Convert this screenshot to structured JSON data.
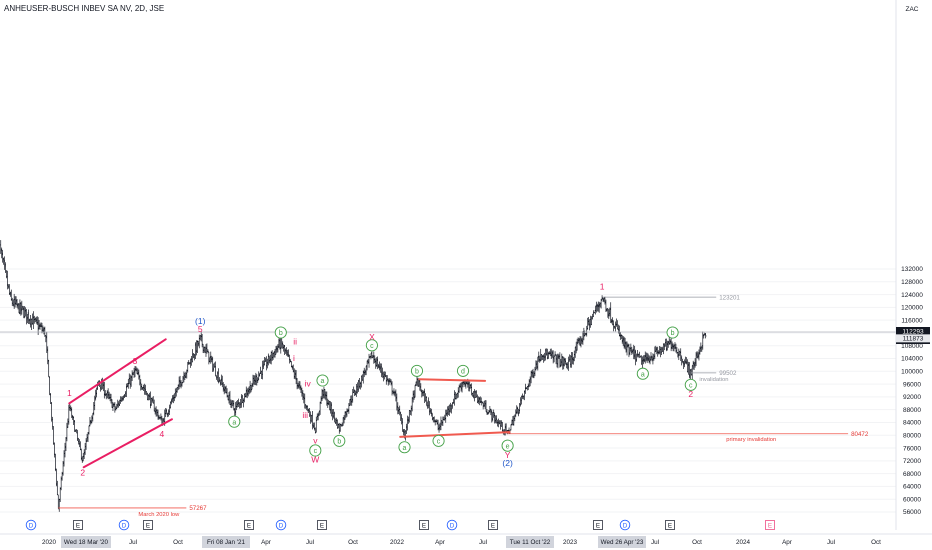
{
  "header": {
    "symbol_title": "ANHEUSER-BUSCH INBEV SA NV, 2D, JSE"
  },
  "colors": {
    "up": "#131722",
    "down": "#131722",
    "pink": "#e91e63",
    "green": "#43a047",
    "blue": "#1e55c9",
    "red_line": "#f05a4f",
    "gray": "#9598a1"
  },
  "price_scale": {
    "currency": "ZAC",
    "ticks": [
      "132000",
      "128000",
      "124000",
      "120000",
      "116000",
      "112000",
      "108000",
      "104000",
      "100000",
      "96000",
      "92000",
      "88000",
      "84000",
      "80000",
      "76000",
      "72000",
      "68000",
      "64000",
      "60000",
      "56000"
    ],
    "last_price": "112293",
    "countdown": "1d 3h",
    "prev_level": "111873"
  },
  "time_axis": {
    "labels": [
      "2020",
      "Jul",
      "Oct",
      "Apr",
      "Jul",
      "Oct",
      "2022",
      "Apr",
      "Jul",
      "2023",
      "Jul",
      "Oct",
      "2024",
      "Apr",
      "Jul",
      "Oct"
    ],
    "highlighted": [
      "Wed 18 Mar '20",
      "Fri 08 Jan '21",
      "Tue 11 Oct '22",
      "Wed 26 Apr '23"
    ]
  },
  "events": {
    "dividend_markers": [
      "D",
      "D",
      "D",
      "D",
      "D"
    ],
    "earnings_markers": [
      "E",
      "E",
      "E",
      "E",
      "E",
      "E",
      "E",
      "E",
      "E"
    ],
    "future_earnings": "E"
  },
  "chart_data": {
    "type": "ohlc",
    "title": "ANHEUSER-BUSCH INBEV SA NV, 2D, JSE",
    "unit": "ZAC",
    "ylim": [
      54000,
      136000
    ],
    "xrange": [
      "2019-11-01",
      "2024-12-31"
    ],
    "waypoints": [
      {
        "date": "2019-11-15",
        "price": 140000
      },
      {
        "date": "2019-12-10",
        "price": 122000
      },
      {
        "date": "2020-01-10",
        "price": 118000
      },
      {
        "date": "2020-02-20",
        "price": 112000
      },
      {
        "date": "2020-03-18",
        "price": 57267
      },
      {
        "date": "2020-04-10",
        "price": 89000
      },
      {
        "date": "2020-05-08",
        "price": 72000
      },
      {
        "date": "2020-06-10",
        "price": 97000
      },
      {
        "date": "2020-07-15",
        "price": 88000
      },
      {
        "date": "2020-08-25",
        "price": 100000
      },
      {
        "date": "2020-10-20",
        "price": 84000
      },
      {
        "date": "2021-01-08",
        "price": 110000
      },
      {
        "date": "2021-03-20",
        "price": 88000
      },
      {
        "date": "2021-06-25",
        "price": 109000
      },
      {
        "date": "2021-07-10",
        "price": 104000
      },
      {
        "date": "2021-08-15",
        "price": 90000
      },
      {
        "date": "2021-09-05",
        "price": 82000
      },
      {
        "date": "2021-09-20",
        "price": 94000
      },
      {
        "date": "2021-10-25",
        "price": 82000
      },
      {
        "date": "2021-11-20",
        "price": 92000
      },
      {
        "date": "2021-12-05",
        "price": 96000
      },
      {
        "date": "2022-01-01",
        "price": 105000
      },
      {
        "date": "2022-02-15",
        "price": 94000
      },
      {
        "date": "2022-03-10",
        "price": 80000
      },
      {
        "date": "2022-04-05",
        "price": 97000
      },
      {
        "date": "2022-05-20",
        "price": 82000
      },
      {
        "date": "2022-07-10",
        "price": 97000
      },
      {
        "date": "2022-10-11",
        "price": 80500
      },
      {
        "date": "2022-12-20",
        "price": 106000
      },
      {
        "date": "2023-02-15",
        "price": 102000
      },
      {
        "date": "2023-04-26",
        "price": 123201
      },
      {
        "date": "2023-06-15",
        "price": 107000
      },
      {
        "date": "2023-07-20",
        "price": 103000
      },
      {
        "date": "2023-09-20",
        "price": 109000
      },
      {
        "date": "2023-10-28",
        "price": 99502
      },
      {
        "date": "2023-11-28",
        "price": 112293
      }
    ],
    "levels": [
      {
        "label": "123201",
        "price": 123201,
        "from": "2023-04-26",
        "to": "2023-12-20"
      },
      {
        "label": "99502",
        "price": 99502,
        "from": "2023-10-28",
        "to": "2023-12-20"
      },
      {
        "label": "80472",
        "price": 80472,
        "from": "2022-10-11",
        "to": "2024-09-20"
      },
      {
        "label": "57267",
        "price": 57267,
        "from": "2020-03-18",
        "to": "2020-12-10"
      },
      {
        "label": "112293",
        "price": 112293,
        "from": "2019-11-01",
        "to": "2024-12-31"
      }
    ],
    "level_notes": [
      {
        "text": "March 2020 low",
        "price": 57267,
        "date": "2020-09-01"
      },
      {
        "text": "primary invalidation",
        "price": 80472,
        "date": "2024-01-10"
      },
      {
        "text": "invalidation",
        "price": 99502,
        "date": "2023-11-15"
      }
    ],
    "trendlines": [
      {
        "from": {
          "date": "2020-04-10",
          "price": 90000
        },
        "to": {
          "date": "2020-10-28",
          "price": 110000
        },
        "color": "pink"
      },
      {
        "from": {
          "date": "2020-05-10",
          "price": 70000
        },
        "to": {
          "date": "2020-11-10",
          "price": 85000
        },
        "color": "pink"
      },
      {
        "from": {
          "date": "2022-03-01",
          "price": 79500
        },
        "to": {
          "date": "2022-10-15",
          "price": 81000
        },
        "color": "red_line"
      },
      {
        "from": {
          "date": "2022-04-10",
          "price": 97500
        },
        "to": {
          "date": "2022-08-25",
          "price": 97000
        },
        "color": "red_line"
      }
    ],
    "wave_labels": [
      {
        "text": "1",
        "date": "2020-04-10",
        "price": 90000,
        "style": "plain",
        "color": "pink",
        "pos": "above"
      },
      {
        "text": "2",
        "date": "2020-05-08",
        "price": 72000,
        "style": "plain",
        "color": "pink",
        "pos": "below"
      },
      {
        "text": "3",
        "date": "2020-08-25",
        "price": 100000,
        "style": "plain",
        "color": "pink",
        "pos": "above"
      },
      {
        "text": "4",
        "date": "2020-10-20",
        "price": 84000,
        "style": "plain",
        "color": "pink",
        "pos": "below"
      },
      {
        "text": "5",
        "date": "2021-01-08",
        "price": 110000,
        "style": "plain",
        "color": "pink",
        "pos": "above"
      },
      {
        "text": "(1)",
        "date": "2021-01-08",
        "price": 112500,
        "style": "plain",
        "color": "blue",
        "pos": "above"
      },
      {
        "text": "a",
        "date": "2021-03-20",
        "price": 88000,
        "style": "circle",
        "color": "green",
        "pos": "below"
      },
      {
        "text": "b",
        "date": "2021-06-25",
        "price": 109000,
        "style": "circle",
        "color": "green",
        "pos": "above"
      },
      {
        "text": "i",
        "date": "2021-07-10",
        "price": 104000,
        "style": "plain",
        "color": "pink",
        "pos": "right"
      },
      {
        "text": "ii",
        "date": "2021-07-25",
        "price": 106000,
        "style": "plain",
        "color": "pink",
        "pos": "above"
      },
      {
        "text": "iii",
        "date": "2021-08-15",
        "price": 90000,
        "style": "plain",
        "color": "pink",
        "pos": "below"
      },
      {
        "text": "iv",
        "date": "2021-08-20",
        "price": 93000,
        "style": "plain",
        "color": "pink",
        "pos": "above"
      },
      {
        "text": "v",
        "date": "2021-09-05",
        "price": 82000,
        "style": "plain",
        "color": "pink",
        "pos": "below"
      },
      {
        "text": "c",
        "date": "2021-09-05",
        "price": 79000,
        "style": "circle",
        "color": "green",
        "pos": "below"
      },
      {
        "text": "W",
        "date": "2021-09-05",
        "price": 76000,
        "style": "plain",
        "color": "pink",
        "pos": "below"
      },
      {
        "text": "a",
        "date": "2021-09-20",
        "price": 94000,
        "style": "circle",
        "color": "green",
        "pos": "above"
      },
      {
        "text": "b",
        "date": "2021-10-25",
        "price": 82000,
        "style": "circle",
        "color": "green",
        "pos": "below"
      },
      {
        "text": "c",
        "date": "2022-01-01",
        "price": 105000,
        "style": "circle",
        "color": "green",
        "pos": "above"
      },
      {
        "text": "X",
        "date": "2022-01-01",
        "price": 107500,
        "style": "plain",
        "color": "pink",
        "pos": "above"
      },
      {
        "text": "a",
        "date": "2022-03-10",
        "price": 80000,
        "style": "circle",
        "color": "green",
        "pos": "below"
      },
      {
        "text": "b",
        "date": "2022-04-05",
        "price": 97000,
        "style": "circle",
        "color": "green",
        "pos": "above"
      },
      {
        "text": "c",
        "date": "2022-05-20",
        "price": 82000,
        "style": "circle",
        "color": "green",
        "pos": "below"
      },
      {
        "text": "d",
        "date": "2022-07-10",
        "price": 97000,
        "style": "circle",
        "color": "green",
        "pos": "above"
      },
      {
        "text": "e",
        "date": "2022-10-11",
        "price": 80500,
        "style": "circle",
        "color": "green",
        "pos": "below"
      },
      {
        "text": "Y",
        "date": "2022-10-11",
        "price": 77500,
        "style": "plain",
        "color": "pink",
        "pos": "below"
      },
      {
        "text": "(2)",
        "date": "2022-10-11",
        "price": 75000,
        "style": "plain",
        "color": "blue",
        "pos": "below"
      },
      {
        "text": "1",
        "date": "2023-04-26",
        "price": 123201,
        "style": "plain",
        "color": "pink",
        "pos": "above"
      },
      {
        "text": "a",
        "date": "2023-07-20",
        "price": 103000,
        "style": "circle",
        "color": "green",
        "pos": "below"
      },
      {
        "text": "b",
        "date": "2023-09-20",
        "price": 109000,
        "style": "circle",
        "color": "green",
        "pos": "above"
      },
      {
        "text": "c",
        "date": "2023-10-28",
        "price": 99502,
        "style": "circle",
        "color": "green",
        "pos": "below"
      },
      {
        "text": "2",
        "date": "2023-10-28",
        "price": 96500,
        "style": "plain",
        "color": "pink",
        "pos": "below"
      }
    ]
  }
}
